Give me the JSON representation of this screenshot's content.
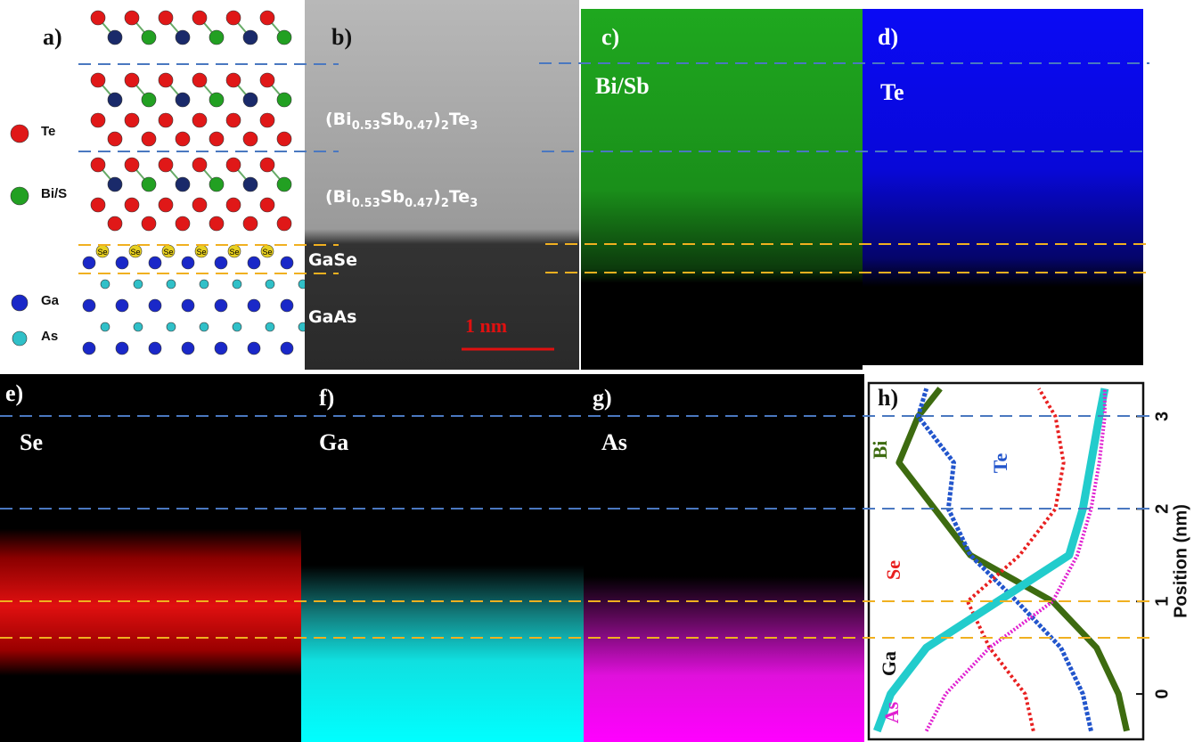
{
  "panels": {
    "a": {
      "label": "a)",
      "legend": [
        "Te",
        "Bi/S",
        "Ga",
        "As"
      ],
      "atom_label": "Se"
    },
    "b": {
      "label": "b)",
      "formula": [
        "(Bi",
        "0.53",
        "Sb",
        "0.47",
        ")",
        "2",
        "Te",
        "3"
      ],
      "layers": [
        "GaSe",
        "GaAs"
      ],
      "scale_bar": "1 nm"
    },
    "c": {
      "label": "c)",
      "element": "Bi/Sb"
    },
    "d": {
      "label": "d)",
      "element": "Te"
    },
    "e": {
      "label": "e)",
      "element": "Se"
    },
    "f": {
      "label": "f)",
      "element": "Ga"
    },
    "g": {
      "label": "g)",
      "element": "As"
    },
    "h": {
      "label": "h)",
      "chart_data": {
        "type": "line",
        "y_label": "Position (nm)",
        "y": [
          -0.4,
          0,
          0.5,
          1,
          1.5,
          2,
          2.5,
          3,
          3.3
        ],
        "ylim": [
          -0.49,
          3.36
        ],
        "yticks": [
          0,
          1,
          2,
          3
        ],
        "series": [
          {
            "name": "Bi",
            "color": "#3d6b10",
            "values": [
              0.94,
              0.91,
              0.83,
              0.67,
              0.37,
              0.24,
              0.11,
              0.18,
              0.26
            ]
          },
          {
            "name": "Te",
            "color": "#2255cc",
            "values": [
              0.81,
              0.78,
              0.7,
              0.54,
              0.37,
              0.29,
              0.31,
              0.18,
              0.21
            ]
          },
          {
            "name": "Se",
            "color": "#e82020",
            "values": [
              0.6,
              0.57,
              0.44,
              0.36,
              0.55,
              0.68,
              0.71,
              0.68,
              0.62
            ]
          },
          {
            "name": "Ga",
            "color": "#22cccc",
            "values": [
              0.03,
              0.08,
              0.21,
              0.47,
              0.73,
              0.78,
              0.81,
              0.84,
              0.86
            ]
          },
          {
            "name": "As",
            "color": "#e020d0",
            "values": [
              0.21,
              0.28,
              0.44,
              0.67,
              0.76,
              0.81,
              0.84,
              0.86,
              0.86
            ]
          }
        ]
      }
    }
  }
}
